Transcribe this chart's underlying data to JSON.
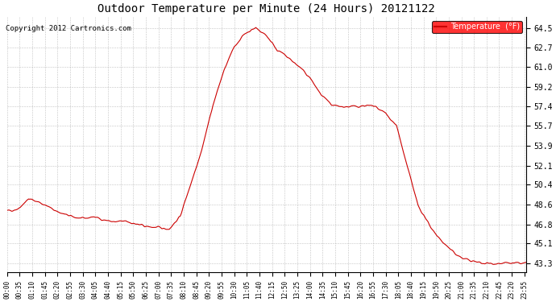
{
  "title": "Outdoor Temperature per Minute (24 Hours) 20121122",
  "copyright_text": "Copyright 2012 Cartronics.com",
  "legend_label": "Temperature  (°F)",
  "line_color": "#cc0000",
  "background_color": "#ffffff",
  "plot_bg_color": "#ffffff",
  "grid_color": "#aaaaaa",
  "yticks": [
    43.3,
    45.1,
    46.8,
    48.6,
    50.4,
    52.1,
    53.9,
    55.7,
    57.4,
    59.2,
    61.0,
    62.7,
    64.5
  ],
  "ylim": [
    42.5,
    65.5
  ],
  "xtick_labels": [
    "00:00",
    "00:35",
    "01:10",
    "01:45",
    "02:20",
    "02:55",
    "03:30",
    "04:05",
    "04:40",
    "05:15",
    "05:50",
    "06:25",
    "07:00",
    "07:35",
    "08:10",
    "08:45",
    "09:20",
    "09:55",
    "10:30",
    "11:05",
    "11:40",
    "12:15",
    "12:50",
    "13:25",
    "14:00",
    "14:35",
    "15:10",
    "15:45",
    "16:20",
    "16:55",
    "17:30",
    "18:05",
    "18:40",
    "19:15",
    "19:50",
    "20:25",
    "21:00",
    "21:35",
    "22:10",
    "22:45",
    "23:20",
    "23:55"
  ],
  "num_minutes": 1440,
  "key_points": {
    "0": 48.0,
    "30": 48.2,
    "60": 49.1,
    "90": 48.8,
    "120": 48.3,
    "150": 47.8,
    "180": 47.5,
    "210": 47.3,
    "240": 47.5,
    "270": 47.2,
    "300": 47.0,
    "330": 47.1,
    "360": 46.8,
    "390": 46.6,
    "420": 46.5,
    "450": 46.4,
    "480": 47.5,
    "510": 50.5,
    "540": 53.5,
    "570": 57.4,
    "600": 60.5,
    "630": 62.8,
    "660": 64.0,
    "690": 64.5,
    "720": 63.8,
    "750": 62.5,
    "780": 61.8,
    "810": 61.0,
    "840": 60.0,
    "870": 58.5,
    "900": 57.5,
    "930": 57.4,
    "960": 57.4,
    "990": 57.5,
    "1020": 57.4,
    "1050": 56.8,
    "1080": 55.7,
    "1110": 52.0,
    "1140": 48.5,
    "1170": 46.8,
    "1200": 45.5,
    "1230": 44.5,
    "1260": 43.8,
    "1290": 43.5,
    "1320": 43.3,
    "1350": 43.3,
    "1380": 43.3,
    "1410": 43.3,
    "1439": 43.3
  }
}
